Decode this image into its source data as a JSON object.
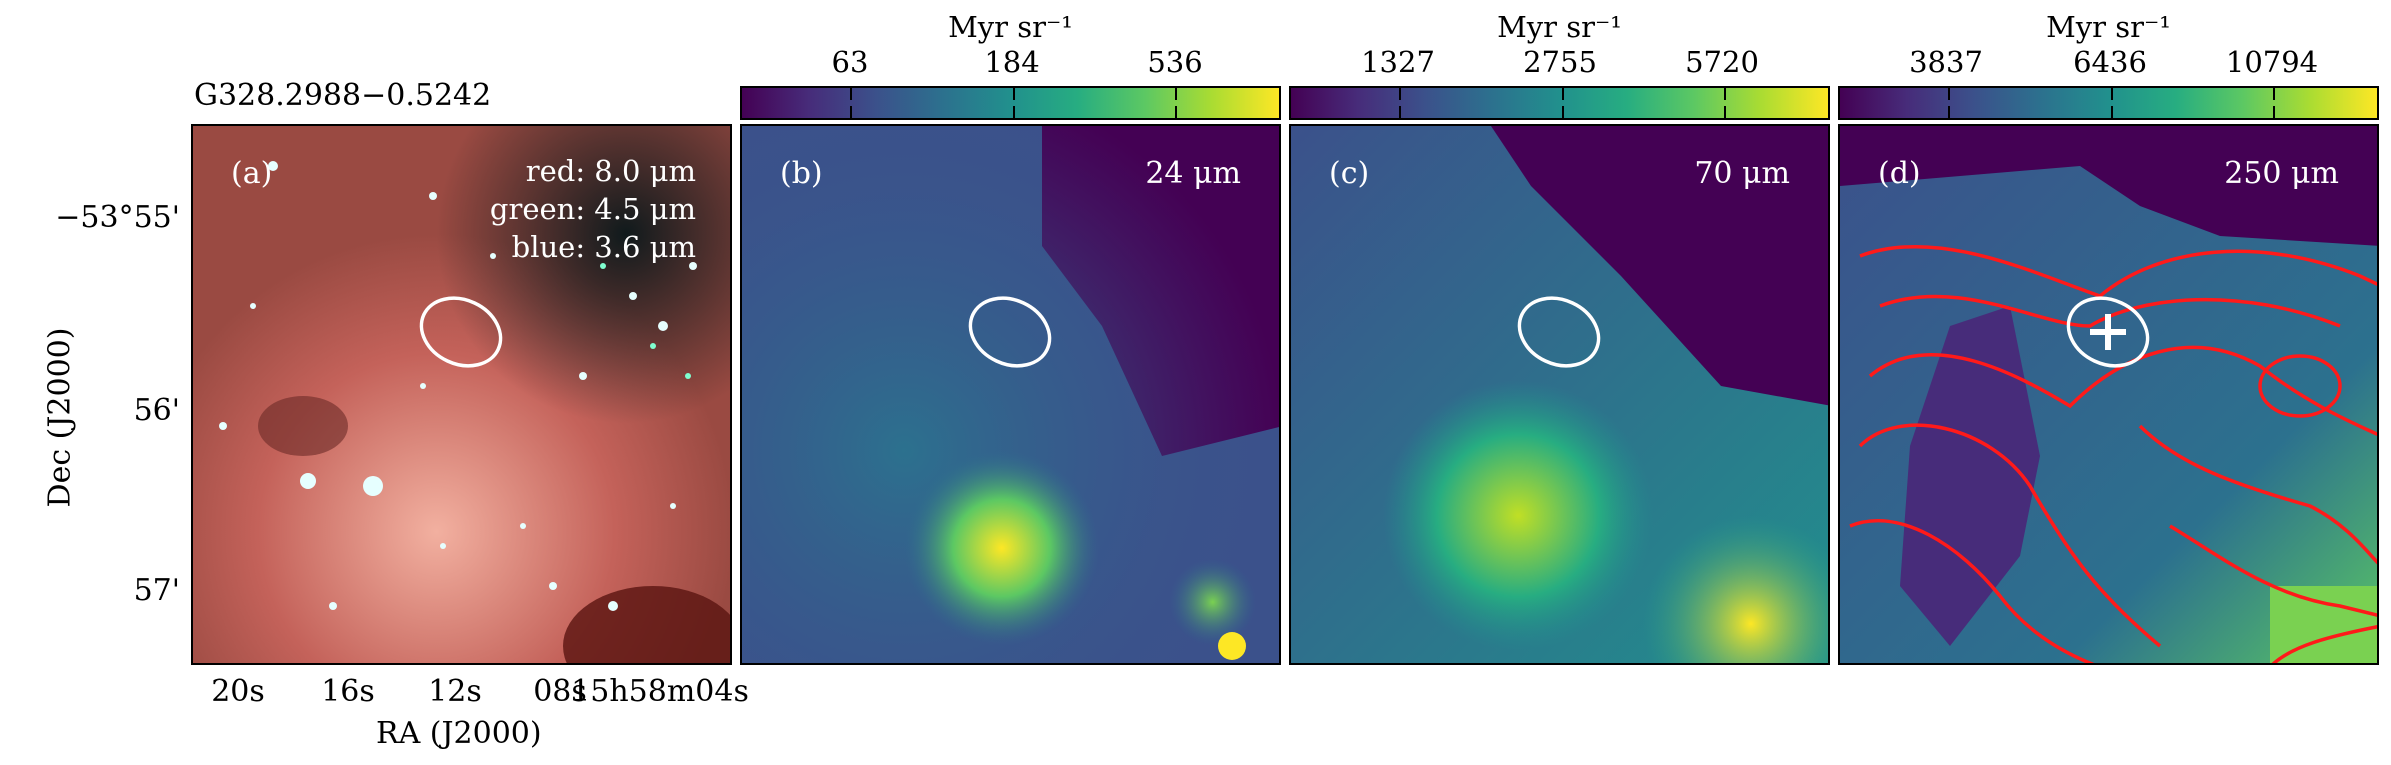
{
  "figure": {
    "source_name": "G328.2988−0.5242",
    "ylabel": "Dec (J2000)",
    "xlabel": "RA (J2000)",
    "dec_ticks": [
      "−53°55'",
      "56'",
      "57'"
    ],
    "ra_ticks": [
      "20s",
      "16s",
      "12s",
      "08s",
      "15h58m04s"
    ],
    "ellipse_color": "#ffffff",
    "contour_color": "#ff1a1a",
    "colormap": "viridis"
  },
  "panels": [
    {
      "label": "(a)",
      "rgb_legend": [
        "red: 8.0 μm",
        "green: 4.5 μm",
        "blue: 3.6 μm"
      ]
    },
    {
      "label": "(b)",
      "wavelength": "24 μm",
      "colorbar": {
        "unit": "Myr sr⁻¹",
        "ticks": [
          "63",
          "184",
          "536"
        ]
      }
    },
    {
      "label": "(c)",
      "wavelength": "70 μm",
      "colorbar": {
        "unit": "Myr sr⁻¹",
        "ticks": [
          "1327",
          "2755",
          "5720"
        ]
      }
    },
    {
      "label": "(d)",
      "wavelength": "250 μm",
      "colorbar": {
        "unit": "Myr sr⁻¹",
        "ticks": [
          "3837",
          "6436",
          "10794"
        ]
      }
    }
  ]
}
